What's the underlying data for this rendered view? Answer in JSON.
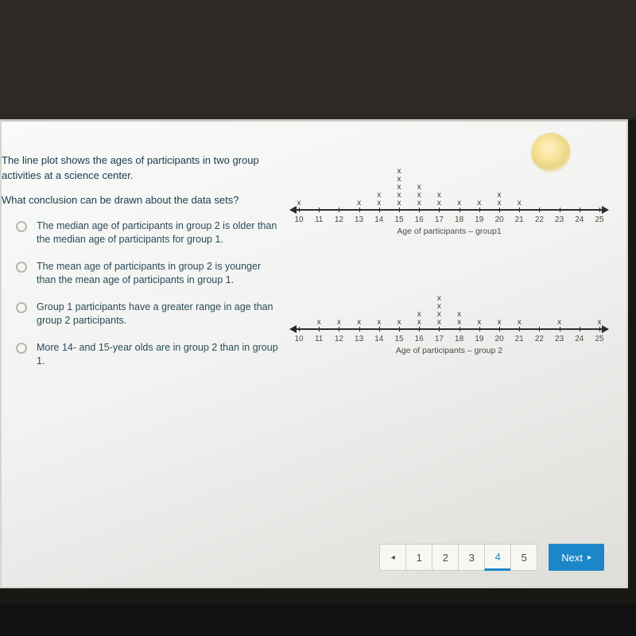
{
  "question": {
    "stem1": "The line plot shows the ages of participants in two group activities at a science center.",
    "stem2": "What conclusion can be drawn about the data sets?",
    "options": [
      "The median age of participants in group 2 is older than the median age of participants for group 1.",
      "The mean age of participants in group 2 is younger than the mean age of participants in group 1.",
      "Group 1 participants have a greater range in age than group 2 participants.",
      "More 14- and 15-year olds are in group 2 than in group 1."
    ]
  },
  "plots": {
    "axis_min": 10,
    "axis_max": 25,
    "tick_step": 1,
    "group1": {
      "caption": "Age of participants – group1",
      "counts": {
        "10": 1,
        "13": 1,
        "14": 2,
        "15": 5,
        "16": 3,
        "17": 2,
        "18": 1,
        "19": 1,
        "20": 2,
        "21": 1
      }
    },
    "group2": {
      "caption": "Age of participants – group 2",
      "counts": {
        "11": 1,
        "12": 1,
        "13": 1,
        "14": 1,
        "15": 1,
        "16": 2,
        "17": 4,
        "18": 2,
        "19": 1,
        "20": 1,
        "21": 1,
        "23": 1,
        "25": 1
      }
    },
    "colors": {
      "axis": "#2b2b2b",
      "tick_label": "#4b4b45",
      "x_mark": "#3b3b36"
    }
  },
  "pager": {
    "prev_glyph": "◂",
    "pages": [
      "1",
      "2",
      "3",
      "4",
      "5"
    ],
    "active_index": 3,
    "next_label": "Next",
    "next_glyph": "▸"
  }
}
